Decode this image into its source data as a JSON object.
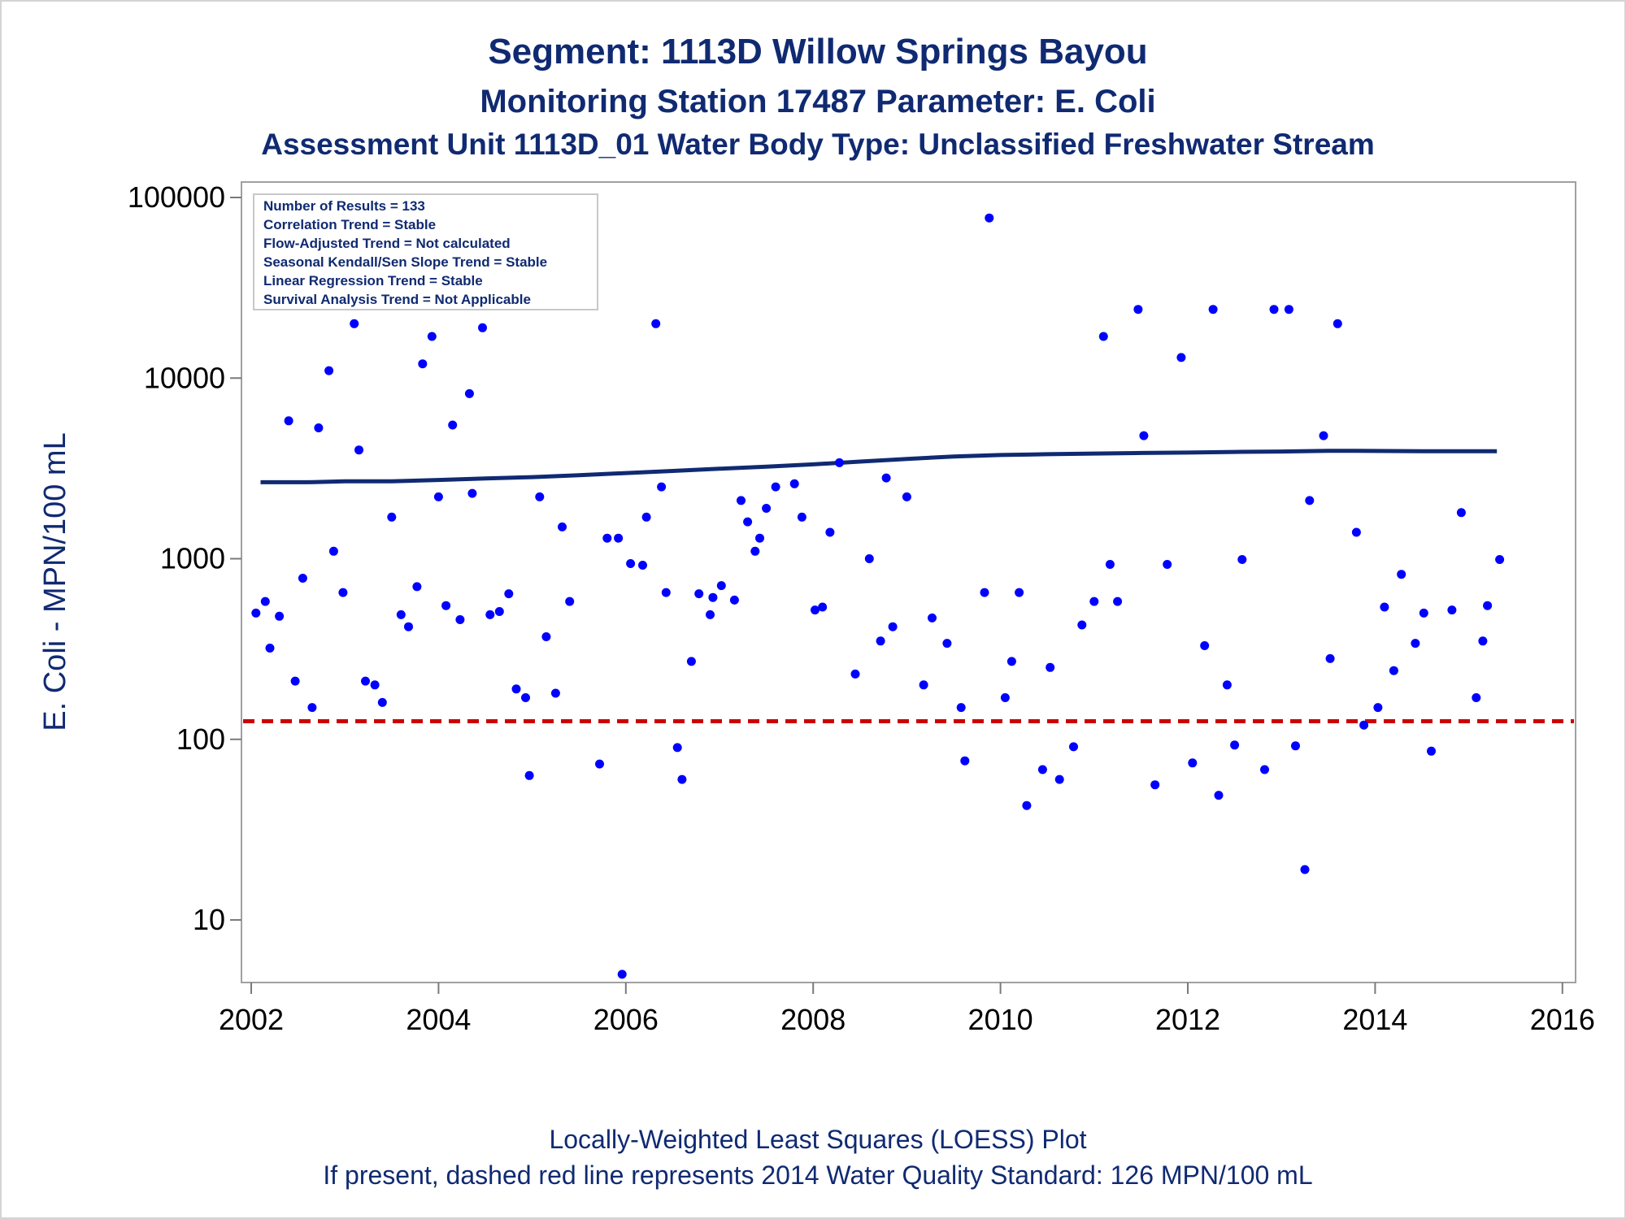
{
  "titles": {
    "line1": "Segment: 1113D  Willow Springs Bayou",
    "line2": "Monitoring Station 17487 Parameter: E. Coli",
    "line3": "Assessment Unit 1113D_01   Water Body Type: Unclassified Freshwater Stream"
  },
  "footnotes": {
    "line1": "Locally-Weighted Least Squares (LOESS) Plot",
    "line2": "If present, dashed red line represents 2014 Water Quality Standard: 126 MPN/100 mL"
  },
  "inset": [
    "Number of Results = 133",
    "Correlation Trend = Stable",
    "Flow-Adjusted Trend = Not calculated",
    "Seasonal Kendall/Sen Slope Trend = Stable",
    "Linear Regression Trend = Stable",
    "Survival Analysis Trend = Not Applicable"
  ],
  "colors": {
    "points": "#0000ff",
    "loess": "#102a72",
    "standard": "#cc0000",
    "text": "#102a72"
  },
  "chart_data": {
    "type": "scatter",
    "xlabel": "",
    "ylabel": "E. Coli - MPN/100 mL",
    "xlim": [
      2002,
      2016
    ],
    "ylim": [
      4.5,
      130000
    ],
    "yscale": "log",
    "x_ticks": [
      "2002",
      "2004",
      "2006",
      "2008",
      "2010",
      "2012",
      "2014",
      "2016"
    ],
    "y_ticks": [
      "10",
      "100",
      "1000",
      "10000",
      "100000"
    ],
    "standard_line": 126,
    "loess_curve": [
      [
        2002.1,
        2650
      ],
      [
        2002.6,
        2650
      ],
      [
        2003.0,
        2680
      ],
      [
        2003.5,
        2680
      ],
      [
        2004.0,
        2730
      ],
      [
        2004.5,
        2780
      ],
      [
        2005.0,
        2830
      ],
      [
        2005.5,
        2900
      ],
      [
        2006.0,
        2980
      ],
      [
        2006.5,
        3060
      ],
      [
        2007.0,
        3150
      ],
      [
        2007.5,
        3230
      ],
      [
        2008.0,
        3330
      ],
      [
        2008.5,
        3450
      ],
      [
        2009.0,
        3570
      ],
      [
        2009.5,
        3680
      ],
      [
        2010.0,
        3750
      ],
      [
        2010.5,
        3790
      ],
      [
        2011.0,
        3820
      ],
      [
        2011.5,
        3850
      ],
      [
        2012.0,
        3870
      ],
      [
        2012.5,
        3900
      ],
      [
        2013.0,
        3920
      ],
      [
        2013.5,
        3960
      ],
      [
        2013.8,
        3960
      ],
      [
        2014.5,
        3940
      ],
      [
        2015.3,
        3940
      ]
    ],
    "points": [
      [
        2002.05,
        500
      ],
      [
        2002.15,
        580
      ],
      [
        2002.2,
        320
      ],
      [
        2002.3,
        480
      ],
      [
        2002.4,
        5800
      ],
      [
        2002.47,
        210
      ],
      [
        2002.55,
        780
      ],
      [
        2002.65,
        150
      ],
      [
        2002.72,
        5300
      ],
      [
        2002.83,
        11000
      ],
      [
        2002.88,
        1100
      ],
      [
        2002.98,
        650
      ],
      [
        2003.1,
        20000
      ],
      [
        2003.15,
        4000
      ],
      [
        2003.22,
        210
      ],
      [
        2003.32,
        200
      ],
      [
        2003.4,
        160
      ],
      [
        2003.5,
        1700
      ],
      [
        2003.6,
        490
      ],
      [
        2003.68,
        420
      ],
      [
        2003.77,
        700
      ],
      [
        2003.83,
        12000
      ],
      [
        2003.93,
        17000
      ],
      [
        2004.0,
        2200
      ],
      [
        2004.08,
        550
      ],
      [
        2004.15,
        5500
      ],
      [
        2004.23,
        460
      ],
      [
        2004.33,
        8200
      ],
      [
        2004.36,
        2300
      ],
      [
        2004.47,
        19000
      ],
      [
        2004.55,
        490
      ],
      [
        2004.65,
        510
      ],
      [
        2004.75,
        640
      ],
      [
        2004.83,
        190
      ],
      [
        2004.93,
        170
      ],
      [
        2004.97,
        63
      ],
      [
        2005.08,
        2200
      ],
      [
        2005.15,
        370
      ],
      [
        2005.25,
        180
      ],
      [
        2005.32,
        1500
      ],
      [
        2005.4,
        580
      ],
      [
        2005.72,
        73
      ],
      [
        2005.8,
        1300
      ],
      [
        2005.92,
        1300
      ],
      [
        2005.96,
        5
      ],
      [
        2006.05,
        940
      ],
      [
        2006.18,
        920
      ],
      [
        2006.22,
        1700
      ],
      [
        2006.32,
        20000
      ],
      [
        2006.38,
        2500
      ],
      [
        2006.43,
        650
      ],
      [
        2006.55,
        90
      ],
      [
        2006.6,
        60
      ],
      [
        2006.7,
        270
      ],
      [
        2006.78,
        640
      ],
      [
        2006.9,
        490
      ],
      [
        2006.93,
        610
      ],
      [
        2007.02,
        710
      ],
      [
        2007.16,
        590
      ],
      [
        2007.23,
        2100
      ],
      [
        2007.3,
        1600
      ],
      [
        2007.38,
        1100
      ],
      [
        2007.43,
        1300
      ],
      [
        2007.5,
        1900
      ],
      [
        2007.6,
        2500
      ],
      [
        2007.8,
        2600
      ],
      [
        2007.88,
        1700
      ],
      [
        2008.02,
        520
      ],
      [
        2008.1,
        540
      ],
      [
        2008.18,
        1400
      ],
      [
        2008.28,
        3400
      ],
      [
        2008.45,
        230
      ],
      [
        2008.6,
        1000
      ],
      [
        2008.72,
        350
      ],
      [
        2008.78,
        2800
      ],
      [
        2008.85,
        420
      ],
      [
        2009.0,
        2200
      ],
      [
        2009.18,
        200
      ],
      [
        2009.27,
        470
      ],
      [
        2009.43,
        340
      ],
      [
        2009.58,
        150
      ],
      [
        2009.62,
        76
      ],
      [
        2009.83,
        650
      ],
      [
        2009.88,
        77000
      ],
      [
        2010.05,
        170
      ],
      [
        2010.12,
        270
      ],
      [
        2010.2,
        650
      ],
      [
        2010.28,
        43
      ],
      [
        2010.45,
        68
      ],
      [
        2010.53,
        250
      ],
      [
        2010.63,
        60
      ],
      [
        2010.78,
        91
      ],
      [
        2010.87,
        430
      ],
      [
        2011.0,
        580
      ],
      [
        2011.1,
        17000
      ],
      [
        2011.17,
        930
      ],
      [
        2011.25,
        580
      ],
      [
        2011.47,
        24000
      ],
      [
        2011.53,
        4800
      ],
      [
        2011.65,
        56
      ],
      [
        2011.78,
        930
      ],
      [
        2011.93,
        13000
      ],
      [
        2012.05,
        74
      ],
      [
        2012.18,
        330
      ],
      [
        2012.27,
        24000
      ],
      [
        2012.33,
        49
      ],
      [
        2012.42,
        200
      ],
      [
        2012.5,
        93
      ],
      [
        2012.58,
        990
      ],
      [
        2012.82,
        68
      ],
      [
        2012.92,
        24000
      ],
      [
        2013.08,
        24000
      ],
      [
        2013.15,
        92
      ],
      [
        2013.25,
        19
      ],
      [
        2013.3,
        2100
      ],
      [
        2013.45,
        4800
      ],
      [
        2013.52,
        280
      ],
      [
        2013.6,
        20000
      ],
      [
        2013.8,
        1400
      ],
      [
        2013.88,
        120
      ],
      [
        2014.03,
        150
      ],
      [
        2014.1,
        540
      ],
      [
        2014.2,
        240
      ],
      [
        2014.28,
        820
      ],
      [
        2014.43,
        340
      ],
      [
        2014.52,
        500
      ],
      [
        2014.6,
        86
      ],
      [
        2014.82,
        520
      ],
      [
        2014.92,
        1800
      ],
      [
        2015.08,
        170
      ],
      [
        2015.15,
        350
      ],
      [
        2015.2,
        550
      ],
      [
        2015.33,
        990
      ]
    ]
  }
}
